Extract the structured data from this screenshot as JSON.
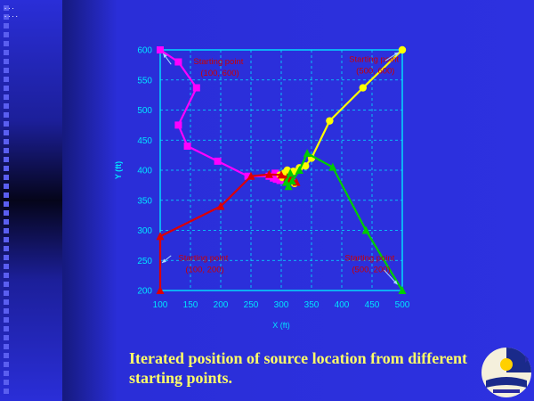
{
  "slide": {
    "top_marks": [
      "...",
      "...."
    ],
    "caption": "Iterated position of source location from different starting points."
  },
  "chart_data": {
    "type": "line",
    "xlabel": "X (ft)",
    "ylabel": "Y (ft)",
    "xlim": [
      100,
      500
    ],
    "ylim": [
      200,
      600
    ],
    "xticks": [
      100,
      150,
      200,
      250,
      300,
      350,
      400,
      450,
      500
    ],
    "yticks": [
      200,
      250,
      300,
      350,
      400,
      450,
      500,
      550,
      600
    ],
    "grid": true,
    "colors": {
      "axis": "#00e5ff",
      "grid": "#00e5ff",
      "annotation": "#cc0000"
    },
    "series": [
      {
        "name": "start (100, 600)",
        "color": "#ff00ff",
        "marker": "square",
        "points": [
          [
            100,
            600
          ],
          [
            130,
            580
          ],
          [
            160,
            537
          ],
          [
            130,
            475
          ],
          [
            145,
            440
          ],
          [
            195,
            415
          ],
          [
            245,
            390
          ],
          [
            280,
            390
          ],
          [
            290,
            395
          ],
          [
            287,
            387
          ],
          [
            292,
            385
          ],
          [
            298,
            383
          ]
        ]
      },
      {
        "name": "start (500, 600)",
        "color": "#ffff00",
        "marker": "circle",
        "points": [
          [
            500,
            600
          ],
          [
            435,
            537
          ],
          [
            380,
            482
          ],
          [
            350,
            420
          ],
          [
            340,
            407
          ],
          [
            330,
            404
          ],
          [
            320,
            398
          ],
          [
            310,
            400
          ],
          [
            302,
            388
          ],
          [
            315,
            382
          ],
          [
            322,
            378
          ],
          [
            305,
            395
          ],
          [
            298,
            392
          ],
          [
            310,
            388
          ]
        ]
      },
      {
        "name": "start (100, 200)",
        "color": "#dd0000",
        "marker": "triangle",
        "points": [
          [
            100,
            200
          ],
          [
            100,
            290
          ],
          [
            200,
            340
          ],
          [
            250,
            390
          ],
          [
            280,
            393
          ],
          [
            300,
            392
          ],
          [
            310,
            388
          ],
          [
            318,
            384
          ],
          [
            325,
            380
          ],
          [
            315,
            386
          ]
        ]
      },
      {
        "name": "start (500, 200)",
        "color": "#00cc00",
        "marker": "triangle",
        "points": [
          [
            500,
            200
          ],
          [
            440,
            300
          ],
          [
            385,
            405
          ],
          [
            343,
            428
          ],
          [
            330,
            400
          ],
          [
            318,
            382
          ],
          [
            312,
            373
          ],
          [
            308,
            380
          ],
          [
            315,
            395
          ]
        ]
      }
    ],
    "annotations": [
      {
        "line1": "Starting point",
        "line2": "(100, 600)",
        "text_at": [
          155,
          576
        ],
        "arrow_from": [
          118,
          576
        ],
        "arrow_to": [
          105,
          594
        ]
      },
      {
        "line1": "Starting point",
        "line2": "(500, 600)",
        "text_at": [
          412,
          580
        ],
        "arrow_from": [
          472,
          582
        ],
        "arrow_to": [
          494,
          596
        ]
      },
      {
        "line1": "Starting point",
        "line2": "(100, 200)",
        "text_at": [
          130,
          250
        ],
        "arrow_from": [
          118,
          258
        ],
        "arrow_to": [
          103,
          246
        ]
      },
      {
        "line1": "Starting point",
        "line2": "(500, 200)",
        "text_at": [
          405,
          250
        ],
        "arrow_from": [
          470,
          234
        ],
        "arrow_to": [
          492,
          210
        ]
      }
    ]
  }
}
